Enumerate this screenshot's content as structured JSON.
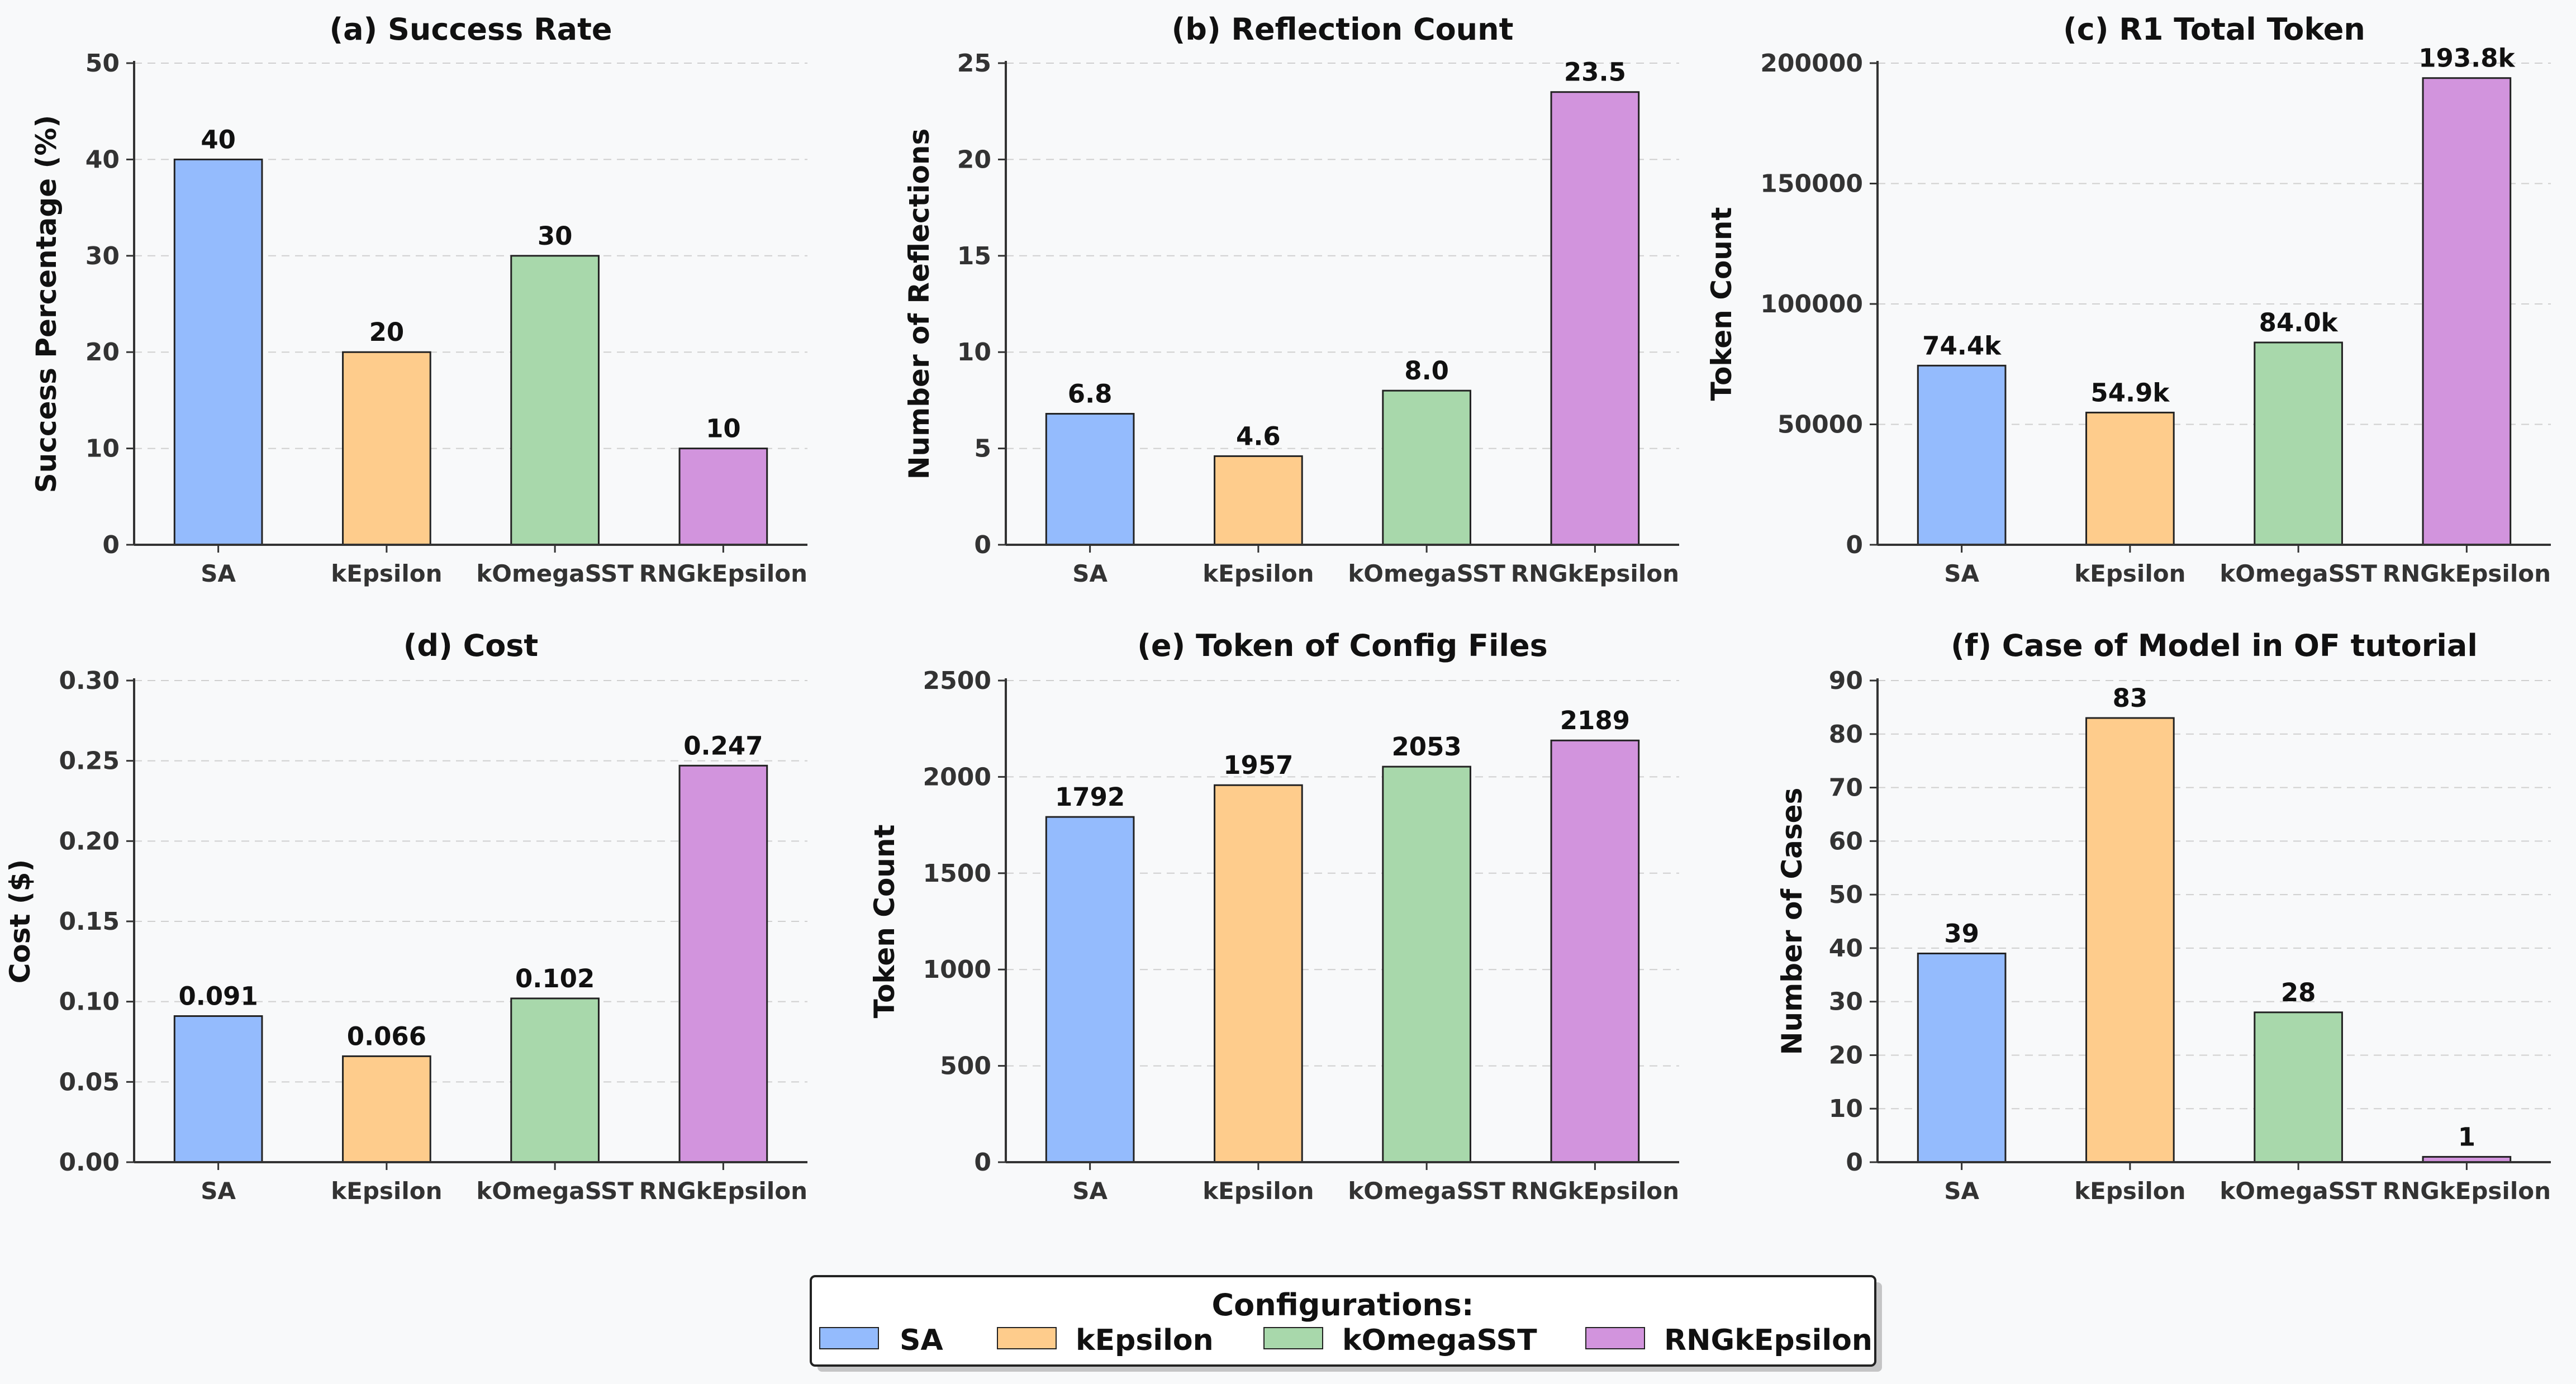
{
  "chart_data": [
    {
      "type": "bar",
      "title": "(a) Success Rate",
      "ylabel": "Success Percentage (%)",
      "categories": [
        "SA",
        "kEpsilon",
        "kOmegaSST",
        "RNGkEpsilon"
      ],
      "values": [
        40,
        20,
        30,
        10
      ],
      "value_labels": [
        "40",
        "20",
        "30",
        "10"
      ],
      "ylim": [
        0,
        50
      ],
      "yticks": [
        0,
        10,
        20,
        30,
        40,
        50
      ],
      "ytick_labels": [
        "0",
        "10",
        "20",
        "30",
        "40",
        "50"
      ],
      "grid": true
    },
    {
      "type": "bar",
      "title": "(b) Reflection Count",
      "ylabel": "Number of Reflections",
      "categories": [
        "SA",
        "kEpsilon",
        "kOmegaSST",
        "RNGkEpsilon"
      ],
      "values": [
        6.8,
        4.6,
        8.0,
        23.5
      ],
      "value_labels": [
        "6.8",
        "4.6",
        "8.0",
        "23.5"
      ],
      "ylim": [
        0,
        25
      ],
      "yticks": [
        0,
        5,
        10,
        15,
        20,
        25
      ],
      "ytick_labels": [
        "0",
        "5",
        "10",
        "15",
        "20",
        "25"
      ],
      "grid": true
    },
    {
      "type": "bar",
      "title": "(c) R1 Total Token",
      "ylabel": "Token Count",
      "categories": [
        "SA",
        "kEpsilon",
        "kOmegaSST",
        "RNGkEpsilon"
      ],
      "values": [
        74400,
        54900,
        84000,
        193800
      ],
      "value_labels": [
        "74.4k",
        "54.9k",
        "84.0k",
        "193.8k"
      ],
      "ylim": [
        0,
        200000
      ],
      "yticks": [
        0,
        50000,
        100000,
        150000,
        200000
      ],
      "ytick_labels": [
        "0",
        "50000",
        "100000",
        "150000",
        "200000"
      ],
      "grid": true
    },
    {
      "type": "bar",
      "title": "(d) Cost",
      "ylabel": "Cost ($)",
      "categories": [
        "SA",
        "kEpsilon",
        "kOmegaSST",
        "RNGkEpsilon"
      ],
      "values": [
        0.091,
        0.066,
        0.102,
        0.247
      ],
      "value_labels": [
        "0.091",
        "0.066",
        "0.102",
        "0.247"
      ],
      "ylim": [
        0,
        0.3
      ],
      "yticks": [
        0,
        0.05,
        0.1,
        0.15,
        0.2,
        0.25,
        0.3
      ],
      "ytick_labels": [
        "0.00",
        "0.05",
        "0.10",
        "0.15",
        "0.20",
        "0.25",
        "0.30"
      ],
      "grid": true
    },
    {
      "type": "bar",
      "title": "(e) Token of Config Files",
      "ylabel": "Token Count",
      "categories": [
        "SA",
        "kEpsilon",
        "kOmegaSST",
        "RNGkEpsilon"
      ],
      "values": [
        1792,
        1957,
        2053,
        2189
      ],
      "value_labels": [
        "1792",
        "1957",
        "2053",
        "2189"
      ],
      "ylim": [
        0,
        2500
      ],
      "yticks": [
        0,
        500,
        1000,
        1500,
        2000,
        2500
      ],
      "ytick_labels": [
        "0",
        "500",
        "1000",
        "1500",
        "2000",
        "2500"
      ],
      "grid": true
    },
    {
      "type": "bar",
      "title": "(f) Case of Model in OF tutorial",
      "ylabel": "Number of Cases",
      "categories": [
        "SA",
        "kEpsilon",
        "kOmegaSST",
        "RNGkEpsilon"
      ],
      "values": [
        39,
        83,
        28,
        1
      ],
      "value_labels": [
        "39",
        "83",
        "28",
        "1"
      ],
      "ylim": [
        0,
        90
      ],
      "yticks": [
        0,
        10,
        20,
        30,
        40,
        50,
        60,
        70,
        80,
        90
      ],
      "ytick_labels": [
        "0",
        "10",
        "20",
        "30",
        "40",
        "50",
        "60",
        "70",
        "80",
        "90"
      ],
      "grid": true
    }
  ],
  "colors": [
    "#94bbfd",
    "#fecc8c",
    "#a8d8ab",
    "#d294dd"
  ],
  "legend": {
    "title": "Configurations:",
    "placement": "bottom-center",
    "entries": [
      "SA",
      "kEpsilon",
      "kOmegaSST",
      "RNGkEpsilon"
    ]
  }
}
